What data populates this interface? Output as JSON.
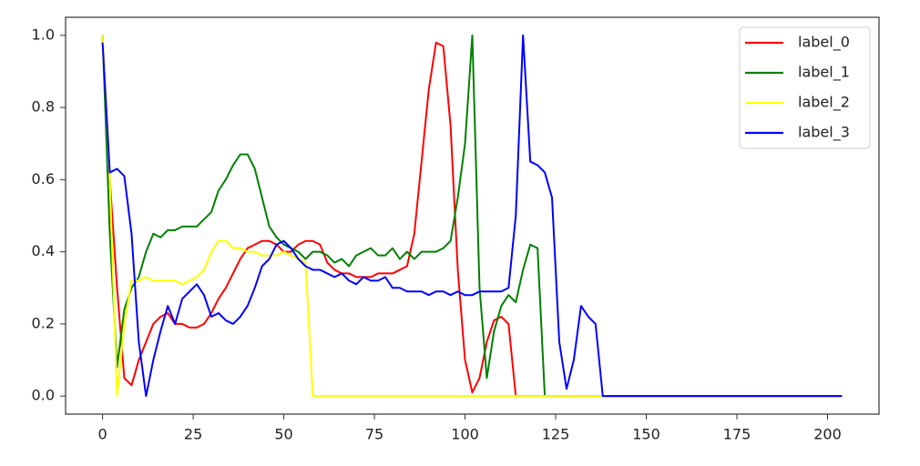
{
  "chart_data": {
    "type": "line",
    "x": [
      0,
      2,
      4,
      6,
      8,
      10,
      12,
      14,
      16,
      18,
      20,
      22,
      24,
      26,
      28,
      30,
      32,
      34,
      36,
      38,
      40,
      42,
      44,
      46,
      48,
      50,
      52,
      54,
      56,
      58,
      60,
      62,
      64,
      66,
      68,
      70,
      72,
      74,
      76,
      78,
      80,
      82,
      84,
      86,
      88,
      90,
      92,
      94,
      96,
      98,
      100,
      102,
      104,
      106,
      108,
      110,
      112,
      114,
      116,
      118,
      120,
      122,
      124,
      126,
      128,
      130,
      132,
      134,
      136,
      138,
      140,
      142,
      144,
      146,
      148,
      150,
      152,
      154,
      156,
      158,
      160,
      162,
      164,
      166,
      168,
      170,
      172,
      174,
      176,
      178,
      180,
      182,
      184,
      186,
      188,
      190,
      192,
      194,
      196,
      198,
      200,
      202,
      204
    ],
    "series": [
      {
        "name": "label_0",
        "color": "#ff0000",
        "values": [
          1.0,
          0.6,
          0.3,
          0.05,
          0.03,
          0.1,
          0.15,
          0.2,
          0.22,
          0.23,
          0.2,
          0.2,
          0.19,
          0.19,
          0.2,
          0.23,
          0.27,
          0.3,
          0.34,
          0.38,
          0.41,
          0.42,
          0.43,
          0.43,
          0.42,
          0.4,
          0.4,
          0.42,
          0.43,
          0.43,
          0.42,
          0.37,
          0.35,
          0.34,
          0.34,
          0.33,
          0.33,
          0.33,
          0.34,
          0.34,
          0.34,
          0.35,
          0.36,
          0.45,
          0.65,
          0.85,
          0.98,
          0.97,
          0.75,
          0.35,
          0.1,
          0.01,
          0.05,
          0.15,
          0.21,
          0.22,
          0.2,
          0,
          0,
          0,
          0,
          0,
          0,
          0,
          0,
          0,
          0,
          0,
          0,
          0,
          0,
          0,
          0,
          0,
          0,
          0,
          0,
          0,
          0,
          0,
          0,
          0,
          0,
          0,
          0,
          0,
          0,
          0,
          0,
          0,
          0,
          0,
          0,
          0,
          0,
          0,
          0,
          0,
          0,
          0,
          0,
          0,
          0
        ]
      },
      {
        "name": "label_1",
        "color": "#008000",
        "values": [
          1.0,
          0.45,
          0.08,
          0.24,
          0.3,
          0.33,
          0.4,
          0.45,
          0.44,
          0.46,
          0.46,
          0.47,
          0.47,
          0.47,
          0.49,
          0.51,
          0.57,
          0.6,
          0.64,
          0.67,
          0.67,
          0.63,
          0.55,
          0.47,
          0.44,
          0.42,
          0.41,
          0.4,
          0.38,
          0.4,
          0.4,
          0.39,
          0.37,
          0.38,
          0.36,
          0.39,
          0.4,
          0.41,
          0.39,
          0.39,
          0.41,
          0.38,
          0.4,
          0.38,
          0.4,
          0.4,
          0.4,
          0.41,
          0.43,
          0.55,
          0.7,
          1.0,
          0.3,
          0.05,
          0.18,
          0.25,
          0.28,
          0.26,
          0.35,
          0.42,
          0.41,
          0,
          0,
          0,
          0,
          0,
          0,
          0,
          0,
          0,
          0,
          0,
          0,
          0,
          0,
          0,
          0,
          0,
          0,
          0,
          0,
          0,
          0,
          0,
          0,
          0,
          0,
          0,
          0,
          0,
          0,
          0,
          0,
          0,
          0,
          0,
          0,
          0,
          0,
          0,
          0,
          0,
          0
        ]
      },
      {
        "name": "label_2",
        "color": "#ffff00",
        "values": [
          1.0,
          0.6,
          0,
          0.2,
          0.32,
          0.32,
          0.33,
          0.32,
          0.32,
          0.32,
          0.32,
          0.31,
          0.32,
          0.33,
          0.35,
          0.4,
          0.43,
          0.43,
          0.41,
          0.41,
          0.4,
          0.4,
          0.39,
          0.39,
          0.39,
          0.4,
          0.39,
          0.38,
          0.37,
          0,
          0,
          0,
          0,
          0,
          0,
          0,
          0,
          0,
          0,
          0,
          0,
          0,
          0,
          0,
          0,
          0,
          0,
          0,
          0,
          0,
          0,
          0,
          0,
          0,
          0,
          0,
          0,
          0,
          0,
          0,
          0,
          0,
          0,
          0,
          0,
          0,
          0,
          0,
          0,
          0,
          0,
          0,
          0,
          0,
          0,
          0,
          0,
          0,
          0,
          0,
          0,
          0,
          0,
          0,
          0,
          0,
          0,
          0,
          0,
          0,
          0,
          0,
          0,
          0,
          0,
          0,
          0,
          0,
          0,
          0,
          0,
          0,
          0
        ]
      },
      {
        "name": "label_3",
        "color": "#0000ff",
        "values": [
          0.98,
          0.62,
          0.63,
          0.61,
          0.45,
          0.15,
          0,
          0.1,
          0.18,
          0.25,
          0.2,
          0.27,
          0.29,
          0.31,
          0.28,
          0.22,
          0.23,
          0.21,
          0.2,
          0.22,
          0.25,
          0.3,
          0.36,
          0.38,
          0.42,
          0.43,
          0.41,
          0.38,
          0.36,
          0.35,
          0.35,
          0.34,
          0.33,
          0.34,
          0.32,
          0.31,
          0.33,
          0.32,
          0.32,
          0.33,
          0.3,
          0.3,
          0.29,
          0.29,
          0.29,
          0.28,
          0.29,
          0.29,
          0.28,
          0.29,
          0.28,
          0.28,
          0.29,
          0.29,
          0.29,
          0.29,
          0.3,
          0.5,
          1.0,
          0.65,
          0.64,
          0.62,
          0.55,
          0.15,
          0.02,
          0.1,
          0.25,
          0.22,
          0.2,
          0,
          0,
          0,
          0,
          0,
          0,
          0,
          0,
          0,
          0,
          0,
          0,
          0,
          0,
          0,
          0,
          0,
          0,
          0,
          0,
          0,
          0,
          0,
          0,
          0,
          0,
          0,
          0,
          0,
          0,
          0,
          0,
          0,
          0
        ]
      }
    ],
    "xlim": [
      -10.2,
      214.2
    ],
    "ylim": [
      -0.05,
      1.05
    ],
    "xticks": [
      0,
      25,
      50,
      75,
      100,
      125,
      150,
      175,
      200
    ],
    "yticks": [
      {
        "value": 0,
        "label": "0.0"
      },
      0.2,
      0.4,
      0.6,
      0.8,
      {
        "value": 1,
        "label": "1.0"
      }
    ],
    "legend": "upper right"
  }
}
